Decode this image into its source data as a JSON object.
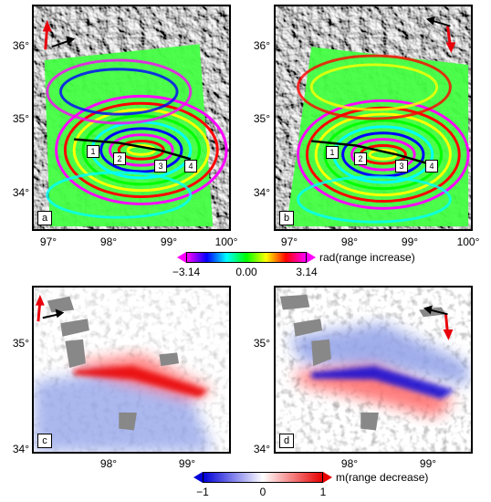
{
  "top_panels": {
    "y_ticks": [
      "36°",
      "35°",
      "34°"
    ],
    "x_ticks": [
      "97°",
      "98°",
      "99°",
      "100°"
    ],
    "labels": {
      "a": "a",
      "b": "b"
    },
    "segment_numbers": [
      "1",
      "2",
      "3",
      "4"
    ]
  },
  "colorbar_top": {
    "title": "rad(range increase)",
    "ticks": [
      "−3.14",
      "0.00",
      "3.14"
    ]
  },
  "bottom_panels": {
    "y_ticks": [
      "35°",
      "34°"
    ],
    "x_ticks": [
      "98°",
      "99°"
    ],
    "labels": {
      "c": "c",
      "d": "d"
    }
  },
  "colorbar_bottom": {
    "title": "m(range decrease)",
    "ticks": [
      "−1",
      "0",
      "1"
    ]
  },
  "colors": {
    "arrow": "#e8000b",
    "hillshade_dark": "#6a6a6a",
    "hillshade_light": "#c8c8c8",
    "positive": "#e80000",
    "negative": "#0000d8"
  },
  "icons": {
    "look_direction": "look-direction-arrow-icon",
    "flight_direction": "flight-direction-arrow-icon"
  }
}
